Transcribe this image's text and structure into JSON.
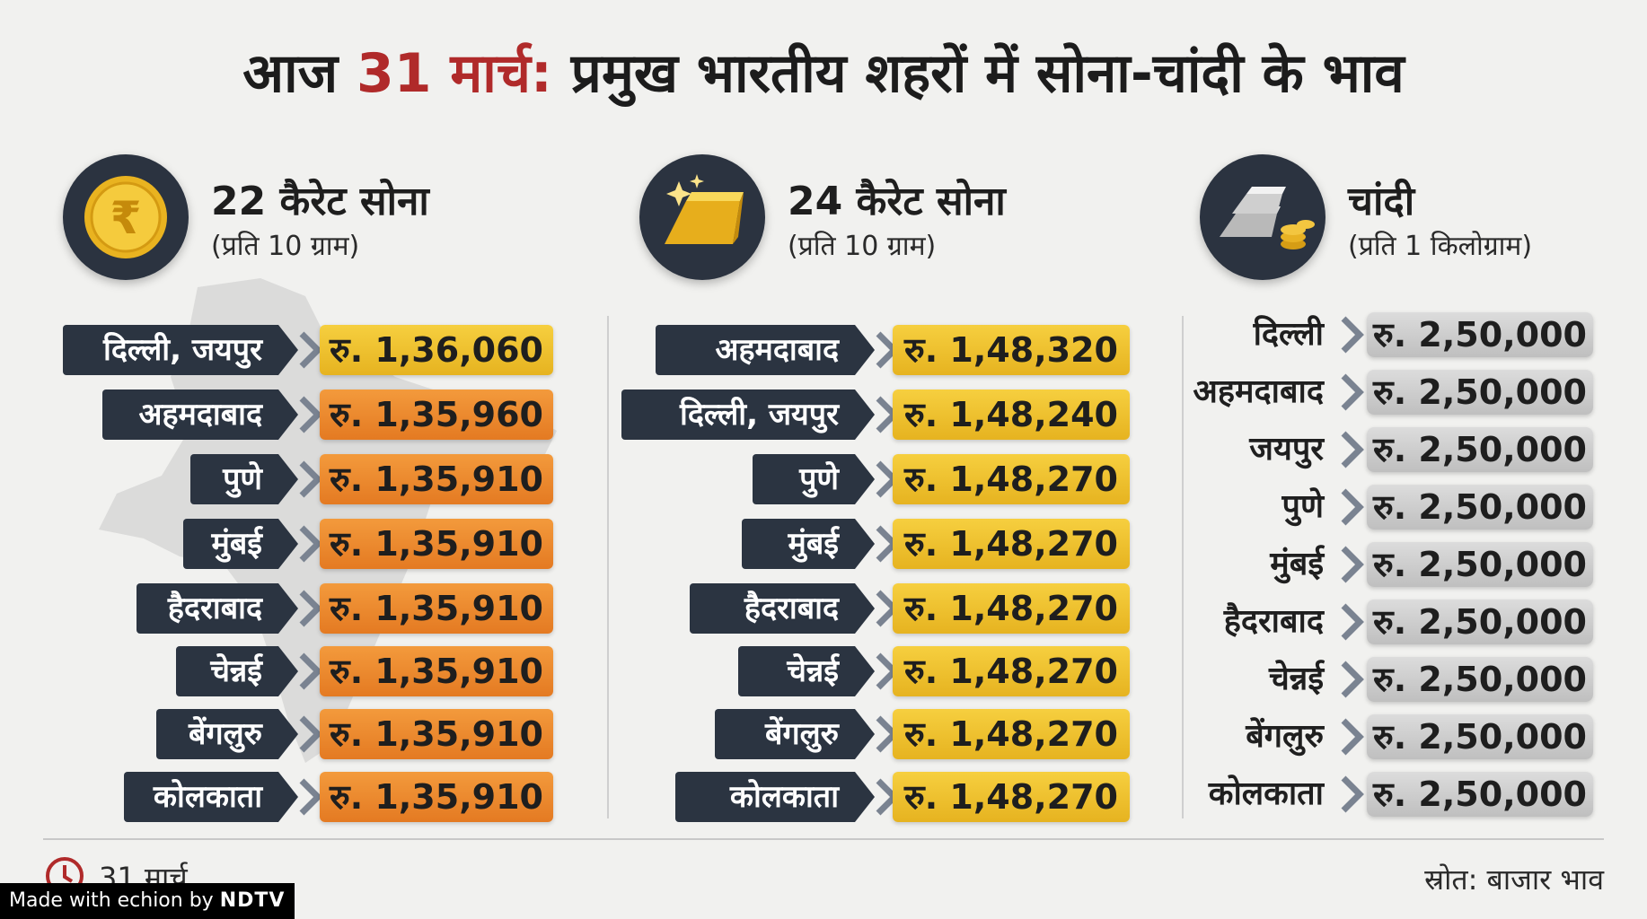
{
  "title": {
    "prefix": "आज ",
    "date": "31 मार्च:",
    "rest": " प्रमुख भारतीय शहरों में सोना-चांदी के भाव"
  },
  "colors": {
    "title_red": "#b02a2a",
    "dark_navy": "#2b3441",
    "gold_yellow": "#f1c232",
    "orange": "#ec8a2e",
    "silver": "#cfcfcf"
  },
  "gold22": {
    "title": "22 कैरेट सोना",
    "unit": "(प्रति 10 ग्राम)",
    "icon": "rupee-coin-icon",
    "rows": [
      {
        "city": "दिल्ली, जयपुर",
        "price": "रु. 1,36,060"
      },
      {
        "city": "अहमदाबाद",
        "price": "रु. 1,35,960"
      },
      {
        "city": "पुणे",
        "price": "रु. 1,35,910"
      },
      {
        "city": "मुंबई",
        "price": "रु. 1,35,910"
      },
      {
        "city": "हैदराबाद",
        "price": "रु. 1,35,910"
      },
      {
        "city": "चेन्नई",
        "price": "रु. 1,35,910"
      },
      {
        "city": "बेंगलुरु",
        "price": "रु. 1,35,910"
      },
      {
        "city": "कोलकाता",
        "price": "रु. 1,35,910"
      }
    ]
  },
  "gold24": {
    "title": "24 कैरेट सोना",
    "unit": "(प्रति 10 ग्राम)",
    "icon": "gold-bar-icon",
    "rows": [
      {
        "city": "अहमदाबाद",
        "price": "रु. 1,48,320"
      },
      {
        "city": "दिल्ली, जयपुर",
        "price": "रु. 1,48,240"
      },
      {
        "city": "पुणे",
        "price": "रु. 1,48,270"
      },
      {
        "city": "मुंबई",
        "price": "रु. 1,48,270"
      },
      {
        "city": "हैदराबाद",
        "price": "रु. 1,48,270"
      },
      {
        "city": "चेन्नई",
        "price": "रु. 1,48,270"
      },
      {
        "city": "बेंगलुरु",
        "price": "रु. 1,48,270"
      },
      {
        "city": "कोलकाता",
        "price": "रु. 1,48,270"
      }
    ]
  },
  "silver": {
    "title": "चांदी",
    "unit": "(प्रति 1 किलोग्राम)",
    "icon": "silver-bars-icon",
    "rows": [
      {
        "city": "दिल्ली",
        "price": "रु. 2,50,000"
      },
      {
        "city": "अहमदाबाद",
        "price": "रु. 2,50,000"
      },
      {
        "city": "जयपुर",
        "price": "रु. 2,50,000"
      },
      {
        "city": "पुणे",
        "price": "रु. 2,50,000"
      },
      {
        "city": "मुंबई",
        "price": "रु. 2,50,000"
      },
      {
        "city": "हैदराबाद",
        "price": "रु. 2,50,000"
      },
      {
        "city": "चेन्नई",
        "price": "रु. 2,50,000"
      },
      {
        "city": "बेंगलुरु",
        "price": "रु. 2,50,000"
      },
      {
        "city": "कोलकाता",
        "price": "रु. 2,50,000"
      }
    ]
  },
  "footer": {
    "date": "31 मार्च",
    "date_icon": "clock-icon",
    "source": "स्रोत: बाजार भाव",
    "made_with": "Made with ",
    "made_brand": "echion",
    "made_by": " by ",
    "made_org": "NDTV"
  }
}
